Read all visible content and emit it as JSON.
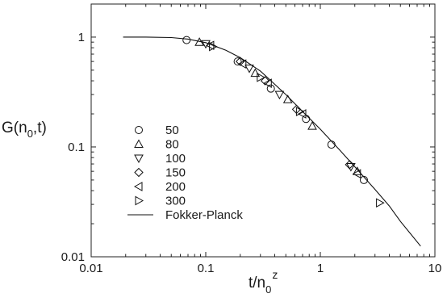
{
  "chart_data": {
    "type": "scatter",
    "x_scale": "log",
    "y_scale": "log",
    "xlim": [
      0.01,
      10
    ],
    "ylim": [
      0.01,
      2
    ],
    "grid": false,
    "legend_position": "left",
    "ylabel": {
      "main": "G(n",
      "sub": "0",
      "tail": ",t)"
    },
    "xlabel": {
      "main": "t/n",
      "sub": "0",
      "sup": "z"
    },
    "x_ticks": [
      {
        "value": 0.01,
        "label": "0.01"
      },
      {
        "value": 0.1,
        "label": "0.1"
      },
      {
        "value": 1,
        "label": "1"
      },
      {
        "value": 10,
        "label": "10"
      }
    ],
    "y_ticks": [
      {
        "value": 0.01,
        "label": "0.01"
      },
      {
        "value": 0.1,
        "label": "0.1"
      },
      {
        "value": 1,
        "label": "1"
      }
    ],
    "series": [
      {
        "name": "50",
        "marker": "circle",
        "points": [
          [
            0.068,
            0.94
          ],
          [
            0.19,
            0.6
          ],
          [
            0.37,
            0.34
          ],
          [
            0.75,
            0.18
          ],
          [
            1.25,
            0.105
          ],
          [
            2.4,
            0.05
          ]
        ]
      },
      {
        "name": "80",
        "marker": "triangle-up",
        "points": [
          [
            0.088,
            0.9
          ],
          [
            0.27,
            0.47
          ],
          [
            0.52,
            0.27
          ],
          [
            0.85,
            0.155
          ],
          [
            2.1,
            0.06
          ]
        ]
      },
      {
        "name": "100",
        "marker": "triangle-down",
        "points": [
          [
            0.1,
            0.87
          ],
          [
            0.24,
            0.52
          ],
          [
            0.44,
            0.3
          ],
          [
            1.85,
            0.066
          ]
        ]
      },
      {
        "name": "150",
        "marker": "diamond",
        "points": [
          [
            0.2,
            0.6
          ],
          [
            0.33,
            0.4
          ],
          [
            0.62,
            0.22
          ],
          [
            1.8,
            0.069
          ]
        ]
      },
      {
        "name": "200",
        "marker": "triangle-left",
        "points": [
          [
            0.11,
            0.84
          ],
          [
            0.21,
            0.57
          ],
          [
            0.35,
            0.38
          ],
          [
            0.7,
            0.2
          ],
          [
            2.1,
            0.057
          ]
        ]
      },
      {
        "name": "300",
        "marker": "triangle-right",
        "points": [
          [
            0.115,
            0.82
          ],
          [
            0.3,
            0.43
          ],
          [
            0.66,
            0.21
          ],
          [
            3.3,
            0.031
          ]
        ]
      }
    ],
    "curve": {
      "name": "Fokker-Planck",
      "points": [
        [
          0.019,
          1.0
        ],
        [
          0.03,
          1.0
        ],
        [
          0.05,
          0.99
        ],
        [
          0.07,
          0.96
        ],
        [
          0.1,
          0.89
        ],
        [
          0.15,
          0.76
        ],
        [
          0.2,
          0.65
        ],
        [
          0.3,
          0.49
        ],
        [
          0.5,
          0.3
        ],
        [
          0.7,
          0.21
        ],
        [
          1.0,
          0.145
        ],
        [
          1.5,
          0.092
        ],
        [
          2.0,
          0.066
        ],
        [
          3.0,
          0.041
        ],
        [
          4.0,
          0.029
        ],
        [
          5.0,
          0.021
        ],
        [
          7.5,
          0.0125
        ]
      ]
    }
  }
}
